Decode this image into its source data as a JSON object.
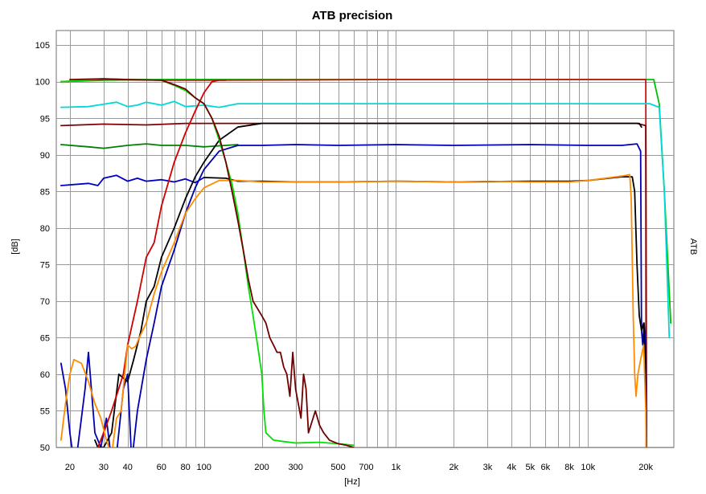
{
  "chart_data": {
    "type": "line",
    "title": "ATB precision",
    "xlabel": "[Hz]",
    "ylabel": "[dB]",
    "ylabel_right": "ATB",
    "x_scale": "log",
    "xlim": [
      17,
      28000
    ],
    "ylim": [
      50,
      107
    ],
    "grid": true,
    "x_ticks": [
      {
        "value": 20,
        "label": "20"
      },
      {
        "value": 30,
        "label": "30"
      },
      {
        "value": 40,
        "label": "40"
      },
      {
        "value": 60,
        "label": "60"
      },
      {
        "value": 80,
        "label": "80"
      },
      {
        "value": 100,
        "label": "100"
      },
      {
        "value": 200,
        "label": "200"
      },
      {
        "value": 300,
        "label": "300"
      },
      {
        "value": 500,
        "label": "500"
      },
      {
        "value": 700,
        "label": "700"
      },
      {
        "value": 1000,
        "label": "1k"
      },
      {
        "value": 2000,
        "label": "2k"
      },
      {
        "value": 3000,
        "label": "3k"
      },
      {
        "value": 4000,
        "label": "4k"
      },
      {
        "value": 5000,
        "label": "5k"
      },
      {
        "value": 6000,
        "label": "6k"
      },
      {
        "value": 8000,
        "label": "8k"
      },
      {
        "value": 10000,
        "label": "10k"
      },
      {
        "value": 20000,
        "label": "20k"
      }
    ],
    "y_ticks": [
      50,
      55,
      60,
      65,
      70,
      75,
      80,
      85,
      90,
      95,
      100,
      105
    ],
    "series": [
      {
        "color": "#00c000",
        "points": [
          [
            18,
            100
          ],
          [
            30,
            100.2
          ],
          [
            60,
            100.3
          ],
          [
            100,
            100.3
          ],
          [
            1000,
            100.3
          ],
          [
            10000,
            100.3
          ],
          [
            20000,
            100.3
          ],
          [
            22000,
            100.3
          ],
          [
            23500,
            97
          ],
          [
            25000,
            85
          ],
          [
            27000,
            67
          ]
        ]
      },
      {
        "color": "#d01010",
        "points": [
          [
            18,
            100
          ],
          [
            30,
            100.3
          ],
          [
            60,
            100.2
          ],
          [
            100,
            100.2
          ],
          [
            1000,
            100.3
          ],
          [
            19500,
            100.3
          ],
          [
            20000,
            100.3
          ],
          [
            20200,
            50
          ]
        ]
      },
      {
        "color": "#00d8d8",
        "points": [
          [
            18,
            96.5
          ],
          [
            25,
            96.6
          ],
          [
            35,
            97.2
          ],
          [
            40,
            96.6
          ],
          [
            45,
            96.8
          ],
          [
            50,
            97.2
          ],
          [
            60,
            96.8
          ],
          [
            70,
            97.3
          ],
          [
            80,
            96.6
          ],
          [
            100,
            96.8
          ],
          [
            120,
            96.5
          ],
          [
            150,
            97
          ],
          [
            200,
            97
          ],
          [
            1000,
            97
          ],
          [
            10000,
            97
          ],
          [
            21000,
            97
          ],
          [
            23500,
            96.5
          ],
          [
            25000,
            85
          ],
          [
            26500,
            65
          ]
        ]
      },
      {
        "color": "#800000",
        "points": [
          [
            18,
            94
          ],
          [
            30,
            94.2
          ],
          [
            50,
            94.1
          ],
          [
            80,
            94.3
          ],
          [
            100,
            94.3
          ],
          [
            120,
            94.3
          ],
          [
            150,
            94.3
          ],
          [
            200,
            94.3
          ],
          [
            1000,
            94.3
          ],
          [
            10000,
            94.3
          ],
          [
            18000,
            94.3
          ],
          [
            20000,
            94
          ],
          [
            20100,
            50
          ]
        ]
      },
      {
        "color": "#008000",
        "points": [
          [
            18,
            91.4
          ],
          [
            25,
            91.1
          ],
          [
            30,
            90.9
          ],
          [
            40,
            91.3
          ],
          [
            50,
            91.5
          ],
          [
            60,
            91.3
          ],
          [
            80,
            91.3
          ],
          [
            100,
            91.1
          ],
          [
            130,
            91.3
          ],
          [
            150,
            91.4
          ]
        ]
      },
      {
        "color": "#0000c0",
        "points": [
          [
            18,
            85.8
          ],
          [
            25,
            86.1
          ],
          [
            28,
            85.8
          ],
          [
            30,
            86.8
          ],
          [
            35,
            87.2
          ],
          [
            40,
            86.4
          ],
          [
            45,
            86.8
          ],
          [
            50,
            86.4
          ],
          [
            60,
            86.6
          ],
          [
            70,
            86.3
          ],
          [
            80,
            86.7
          ],
          [
            90,
            86.2
          ],
          [
            100,
            86.9
          ]
        ]
      },
      {
        "color": "#0000b0",
        "points": [
          [
            18,
            61.5
          ],
          [
            19,
            58
          ],
          [
            20,
            52
          ],
          [
            21,
            48
          ],
          [
            22,
            50
          ],
          [
            24,
            58
          ],
          [
            25,
            63
          ],
          [
            27,
            52
          ],
          [
            29,
            50
          ],
          [
            31,
            54
          ],
          [
            33,
            48
          ],
          [
            35,
            49
          ],
          [
            38,
            58
          ],
          [
            40,
            60
          ],
          [
            42,
            48
          ],
          [
            45,
            55
          ],
          [
            50,
            62
          ],
          [
            55,
            67
          ],
          [
            60,
            72
          ],
          [
            70,
            77
          ],
          [
            80,
            82
          ],
          [
            90,
            85.5
          ],
          [
            100,
            88
          ],
          [
            120,
            90.5
          ],
          [
            150,
            91.3
          ],
          [
            200,
            91.3
          ],
          [
            300,
            91.4
          ],
          [
            500,
            91.3
          ],
          [
            1000,
            91.4
          ],
          [
            2000,
            91.3
          ],
          [
            5000,
            91.4
          ],
          [
            10000,
            91.3
          ],
          [
            15000,
            91.3
          ],
          [
            18000,
            91.5
          ],
          [
            18800,
            90.5
          ],
          [
            19000,
            66
          ],
          [
            19300,
            64
          ],
          [
            19600,
            67
          ],
          [
            19800,
            65
          ],
          [
            20000,
            64
          ],
          [
            20200,
            50
          ]
        ]
      },
      {
        "color": "#000000",
        "points": [
          [
            27,
            51
          ],
          [
            28,
            50
          ],
          [
            30,
            50
          ],
          [
            33,
            52
          ],
          [
            36,
            60
          ],
          [
            40,
            59
          ],
          [
            43,
            62
          ],
          [
            47,
            66
          ],
          [
            50,
            70
          ],
          [
            55,
            72
          ],
          [
            60,
            76
          ],
          [
            70,
            80
          ],
          [
            80,
            84
          ],
          [
            90,
            87
          ],
          [
            100,
            89
          ],
          [
            120,
            92
          ],
          [
            150,
            93.8
          ],
          [
            200,
            94.3
          ],
          [
            500,
            94.3
          ],
          [
            1000,
            94.3
          ],
          [
            5000,
            94.3
          ],
          [
            10000,
            94.3
          ],
          [
            18500,
            94.3
          ],
          [
            19000,
            93.8
          ]
        ]
      },
      {
        "color": "#000000",
        "points": [
          [
            100,
            86.9
          ],
          [
            130,
            86.8
          ],
          [
            150,
            86.4
          ],
          [
            200,
            86.4
          ],
          [
            300,
            86.3
          ],
          [
            500,
            86.3
          ],
          [
            1000,
            86.4
          ],
          [
            2000,
            86.3
          ],
          [
            5000,
            86.4
          ],
          [
            8000,
            86.4
          ],
          [
            10000,
            86.5
          ],
          [
            15000,
            87
          ],
          [
            17000,
            87
          ],
          [
            17500,
            85
          ],
          [
            18000,
            75
          ],
          [
            18500,
            68
          ],
          [
            19000,
            66
          ],
          [
            19500,
            67
          ],
          [
            20000,
            60
          ],
          [
            20200,
            50
          ]
        ]
      },
      {
        "color": "#d00000",
        "points": [
          [
            28,
            50
          ],
          [
            30,
            52
          ],
          [
            33,
            55
          ],
          [
            38,
            60
          ],
          [
            40,
            64
          ],
          [
            45,
            70
          ],
          [
            50,
            76
          ],
          [
            55,
            78
          ],
          [
            60,
            83
          ],
          [
            70,
            89
          ],
          [
            80,
            93
          ],
          [
            90,
            96
          ],
          [
            100,
            98.5
          ],
          [
            110,
            100
          ],
          [
            120,
            100.2
          ],
          [
            130,
            100.2
          ]
        ]
      },
      {
        "color": "#ff8c00",
        "points": [
          [
            18,
            51
          ],
          [
            19,
            56
          ],
          [
            20,
            60
          ],
          [
            21,
            62
          ],
          [
            23,
            61.5
          ],
          [
            25,
            59
          ],
          [
            27,
            56
          ],
          [
            29,
            54
          ],
          [
            31,
            51
          ],
          [
            33,
            49
          ],
          [
            35,
            54
          ],
          [
            37,
            55
          ],
          [
            40,
            64
          ],
          [
            42,
            63.5
          ],
          [
            44,
            63.8
          ],
          [
            46,
            65
          ],
          [
            50,
            67
          ],
          [
            55,
            71
          ],
          [
            60,
            74
          ],
          [
            70,
            78
          ],
          [
            80,
            82
          ],
          [
            90,
            84
          ],
          [
            100,
            85.5
          ],
          [
            120,
            86.5
          ],
          [
            150,
            86.5
          ],
          [
            200,
            86.3
          ],
          [
            300,
            86.3
          ],
          [
            500,
            86.3
          ],
          [
            1000,
            86.4
          ],
          [
            2000,
            86.3
          ],
          [
            3000,
            86.4
          ],
          [
            5000,
            86.3
          ],
          [
            8000,
            86.3
          ],
          [
            10000,
            86.5
          ],
          [
            15000,
            87.1
          ],
          [
            16500,
            87.3
          ],
          [
            16800,
            84
          ],
          [
            17200,
            68
          ],
          [
            17500,
            60
          ],
          [
            17800,
            57
          ],
          [
            18200,
            60
          ],
          [
            18800,
            62
          ],
          [
            19500,
            64
          ],
          [
            20000,
            55
          ],
          [
            20100,
            50
          ]
        ]
      },
      {
        "color": "#00e000",
        "points": [
          [
            18,
            100
          ],
          [
            25,
            100.2
          ],
          [
            30,
            100.4
          ],
          [
            40,
            100.3
          ],
          [
            50,
            100.3
          ],
          [
            60,
            100.2
          ],
          [
            70,
            99.5
          ],
          [
            80,
            98.8
          ],
          [
            90,
            97.8
          ],
          [
            100,
            97
          ],
          [
            110,
            95
          ],
          [
            120,
            92
          ],
          [
            130,
            89
          ],
          [
            140,
            86
          ],
          [
            150,
            82
          ],
          [
            160,
            77
          ],
          [
            170,
            72
          ],
          [
            180,
            68
          ],
          [
            190,
            64
          ],
          [
            200,
            60
          ],
          [
            205,
            55
          ],
          [
            210,
            52
          ],
          [
            230,
            51
          ],
          [
            260,
            50.8
          ],
          [
            300,
            50.6
          ],
          [
            400,
            50.7
          ],
          [
            500,
            50.5
          ],
          [
            600,
            50.3
          ]
        ]
      },
      {
        "color": "#700000",
        "points": [
          [
            20,
            100.3
          ],
          [
            30,
            100.4
          ],
          [
            40,
            100.3
          ],
          [
            60,
            100.2
          ],
          [
            70,
            99.6
          ],
          [
            80,
            99
          ],
          [
            90,
            97.8
          ],
          [
            100,
            97
          ],
          [
            110,
            95
          ],
          [
            120,
            92.5
          ],
          [
            130,
            89
          ],
          [
            140,
            85
          ],
          [
            150,
            81
          ],
          [
            160,
            77
          ],
          [
            170,
            73
          ],
          [
            180,
            70
          ],
          [
            200,
            68
          ],
          [
            210,
            67
          ],
          [
            220,
            65
          ],
          [
            230,
            64
          ],
          [
            240,
            63
          ],
          [
            250,
            63
          ],
          [
            260,
            61
          ],
          [
            270,
            60
          ],
          [
            280,
            57
          ],
          [
            290,
            63
          ],
          [
            300,
            58
          ],
          [
            320,
            54
          ],
          [
            330,
            60
          ],
          [
            340,
            58
          ],
          [
            350,
            52
          ],
          [
            380,
            55
          ],
          [
            400,
            53
          ],
          [
            420,
            52
          ],
          [
            450,
            51
          ],
          [
            500,
            50.5
          ],
          [
            550,
            50.3
          ],
          [
            600,
            50
          ]
        ]
      }
    ]
  }
}
